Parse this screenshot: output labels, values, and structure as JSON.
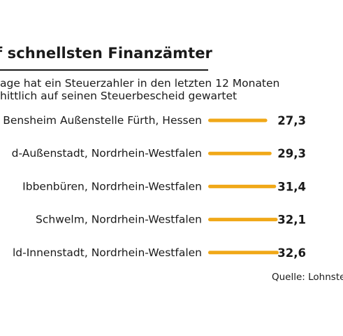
{
  "header": {
    "title": "f schnellsten Finanzämter",
    "subtitle_line1": "age hat ein Steuerzahler in den letzten 12 Monaten",
    "subtitle_line2": "hittlich auf seinen Steuerbescheid gewartet"
  },
  "footer": {
    "source": "Quelle: Lohnste"
  },
  "colors": {
    "bar": "#f0a818",
    "text": "#1a1a1a"
  },
  "chart_data": {
    "type": "bar",
    "orientation": "horizontal",
    "title": "f schnellsten Finanzämter",
    "categories": [
      "Bensheim Außenstelle Fürth, Hessen",
      "d-Außenstadt, Nordrhein-Westfalen",
      "Ibbenbüren, Nordrhein-Westfalen",
      "Schwelm, Nordrhein-Westfalen",
      "ld-Innenstadt, Nordrhein-Westfalen"
    ],
    "values": [
      27.3,
      29.3,
      31.4,
      32.1,
      32.6
    ],
    "value_labels": [
      "27,3",
      "29,3",
      "31,4",
      "32,1",
      "32,6"
    ],
    "xlim": [
      0,
      32.6
    ],
    "grid": false,
    "legend": "none"
  }
}
